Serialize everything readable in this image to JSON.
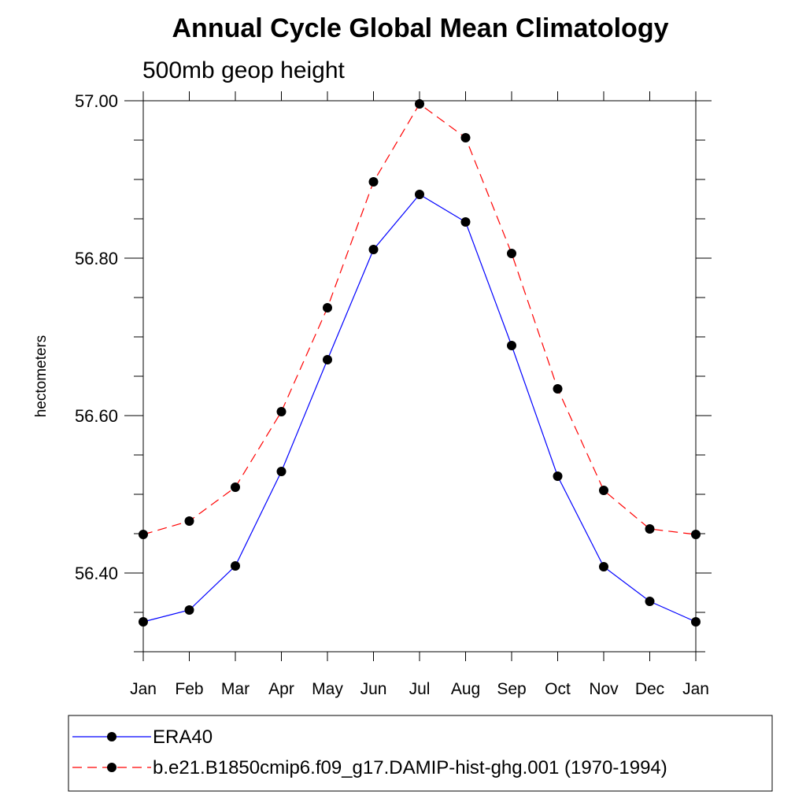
{
  "chart_data": {
    "type": "line",
    "title": "Annual Cycle Global Mean Climatology",
    "subtitle": "500mb geop height",
    "ylabel": "hectometers",
    "xlabel": "",
    "categories": [
      "Jan",
      "Feb",
      "Mar",
      "Apr",
      "May",
      "Jun",
      "Jul",
      "Aug",
      "Sep",
      "Oct",
      "Nov",
      "Dec",
      "Jan"
    ],
    "ylim": [
      56.3,
      57.0
    ],
    "yticks": [
      56.4,
      56.6,
      56.8,
      57.0
    ],
    "ytick_labels": [
      "56.40",
      "56.60",
      "56.80",
      "57.00"
    ],
    "y_minor_step": 0.05,
    "grid": false,
    "legend_position": "bottom",
    "series": [
      {
        "name": "ERA40",
        "color": "#0000ff",
        "dash": "solid",
        "marker": "filled-circle",
        "values": [
          56.338,
          56.353,
          56.409,
          56.529,
          56.671,
          56.811,
          56.881,
          56.846,
          56.689,
          56.523,
          56.408,
          56.364,
          56.338
        ]
      },
      {
        "name": "b.e21.B1850cmip6.f09_g17.DAMIP-hist-ghg.001 (1970-1994)",
        "color": "#ff0000",
        "dash": "dashed",
        "marker": "filled-circle",
        "values": [
          56.449,
          56.466,
          56.509,
          56.605,
          56.737,
          56.897,
          56.996,
          56.953,
          56.806,
          56.634,
          56.505,
          56.456,
          56.449
        ]
      }
    ]
  }
}
